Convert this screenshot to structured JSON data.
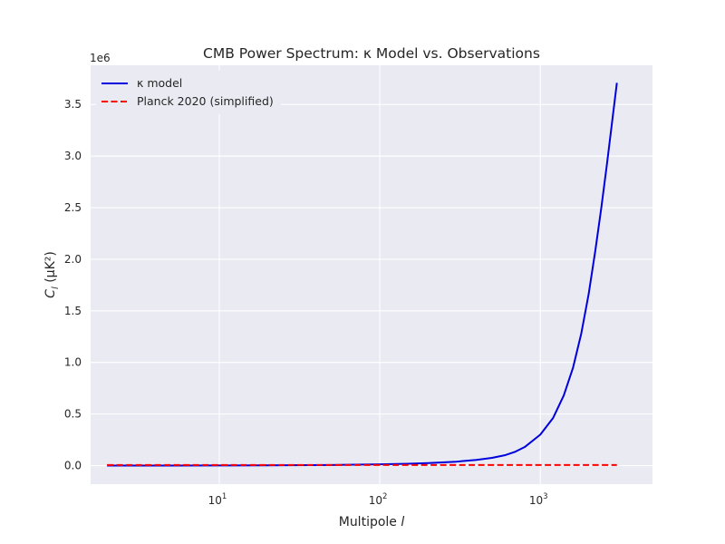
{
  "chart_data": {
    "type": "line",
    "title": "CMB Power Spectrum: κ Model vs. Observations",
    "xlabel": "Multipole l",
    "ylabel": "C_l (μK²)",
    "x_scale": "log",
    "y_offset_text": "1e6",
    "xlim": [
      1.58,
      5000
    ],
    "ylim": [
      -0.18,
      3.88
    ],
    "y_ticks": [
      0.0,
      0.5,
      1.0,
      1.5,
      2.0,
      2.5,
      3.0,
      3.5
    ],
    "y_tick_labels": [
      "0.0",
      "0.5",
      "1.0",
      "1.5",
      "2.0",
      "2.5",
      "3.0",
      "3.5"
    ],
    "x_ticks": [
      10,
      100,
      1000
    ],
    "x_tick_labels": [
      "10",
      "10",
      "10"
    ],
    "x_tick_exponents": [
      "1",
      "2",
      "3"
    ],
    "grid": true,
    "legend_position": "top-left",
    "series": [
      {
        "name": "κ model",
        "color": "#0000dd",
        "style": "solid",
        "x": [
          2,
          5,
          10,
          20,
          50,
          100,
          150,
          200,
          300,
          400,
          500,
          600,
          700,
          800,
          1000,
          1200,
          1400,
          1600,
          1800,
          2000,
          2200,
          2400,
          2600,
          2800,
          3000
        ],
        "y": [
          0.0,
          0.0002,
          0.0011,
          0.0024,
          0.0056,
          0.012,
          0.018,
          0.024,
          0.038,
          0.055,
          0.075,
          0.1,
          0.135,
          0.18,
          0.3,
          0.46,
          0.68,
          0.95,
          1.28,
          1.66,
          2.08,
          2.5,
          2.92,
          3.33,
          3.71
        ]
      },
      {
        "name": "Planck 2020 (simplified)",
        "color": "#ff0000",
        "style": "dashed",
        "x": [
          2,
          3000
        ],
        "y": [
          0.006,
          0.006
        ]
      }
    ]
  }
}
